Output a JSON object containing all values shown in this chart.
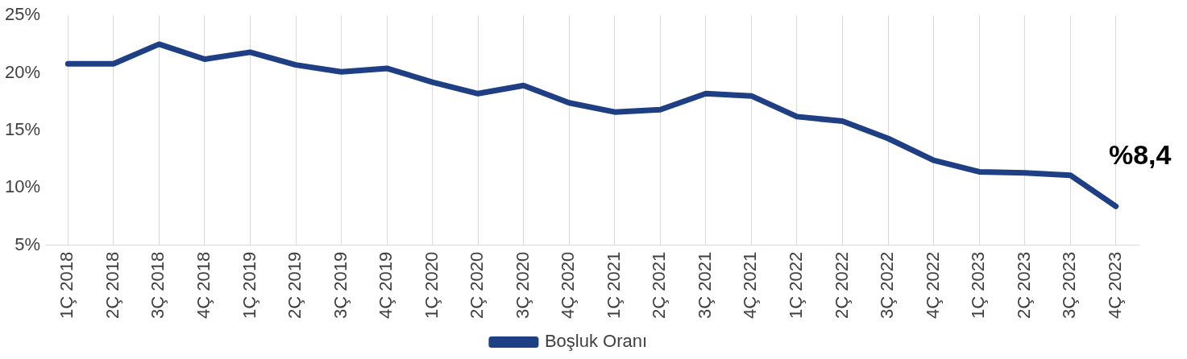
{
  "chart_data": {
    "type": "line",
    "categories": [
      "1Ç 2018",
      "2Ç 2018",
      "3Ç 2018",
      "4Ç 2018",
      "1Ç 2019",
      "2Ç 2019",
      "3Ç 2019",
      "4Ç 2019",
      "1Ç 2020",
      "2Ç 2020",
      "3Ç 2020",
      "4Ç 2020",
      "1Ç 2021",
      "2Ç 2021",
      "3Ç 2021",
      "4Ç 2021",
      "1Ç 2022",
      "2Ç 2022",
      "3Ç 2022",
      "4Ç 2022",
      "1Ç 2023",
      "2Ç 2023",
      "3Ç 2023",
      "4Ç 2023"
    ],
    "series": [
      {
        "name": "Boşluk Oranı",
        "color": "#1f3f85",
        "values": [
          20.8,
          20.8,
          22.5,
          21.2,
          21.8,
          20.7,
          20.1,
          20.4,
          19.2,
          18.2,
          18.9,
          17.4,
          16.6,
          16.8,
          18.2,
          18.0,
          16.2,
          15.8,
          14.3,
          12.4,
          11.4,
          11.3,
          11.1,
          8.4
        ]
      }
    ],
    "ylim": [
      5,
      25
    ],
    "yticks": [
      {
        "value": 5,
        "label": "5%"
      },
      {
        "value": 10,
        "label": "10%"
      },
      {
        "value": 15,
        "label": "15%"
      },
      {
        "value": 20,
        "label": "20%"
      },
      {
        "value": 25,
        "label": "25%"
      }
    ],
    "grid": "x",
    "legend": "bottom",
    "marker": "none",
    "line_style": "solid",
    "annotations": [
      {
        "text": "%8,4",
        "x": "4Ç 2023",
        "y": 8.4
      }
    ]
  }
}
